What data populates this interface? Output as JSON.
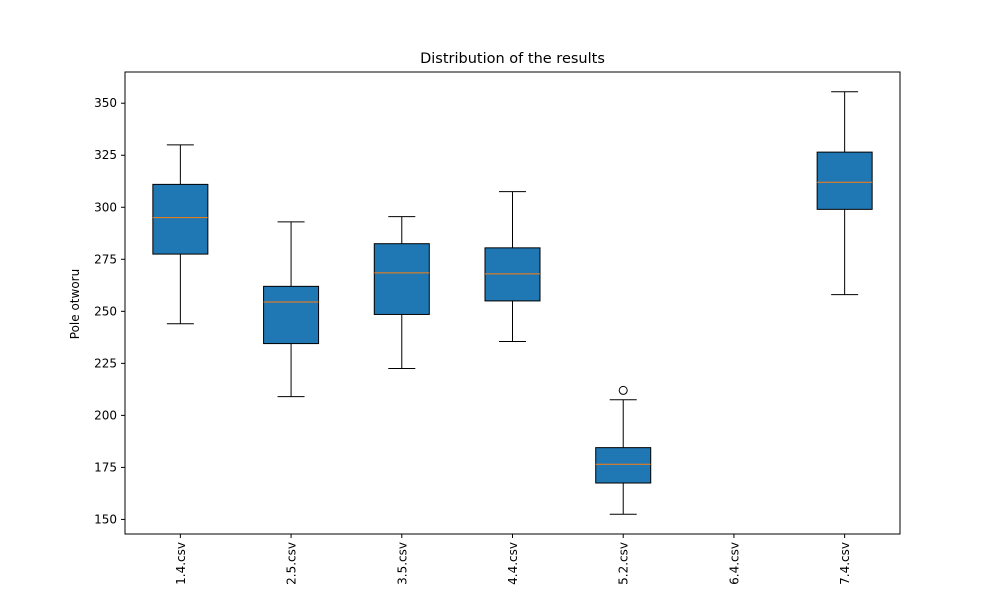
{
  "chart_data": {
    "type": "boxplot",
    "title": "Distribution of the results",
    "xlabel": "",
    "ylabel": "Pole otworu",
    "ylim": [
      143,
      365
    ],
    "yticks": [
      150,
      175,
      200,
      225,
      250,
      275,
      300,
      325,
      350
    ],
    "grid": false,
    "colors": {
      "box_fill": "#1f77b4",
      "median": "#ff7f0e",
      "edge": "#000000"
    },
    "categories": [
      "1.4.csv",
      "2.5.csv",
      "3.5.csv",
      "4.4.csv",
      "5.2.csv",
      "6.4.csv",
      "7.4.csv"
    ],
    "boxes": [
      {
        "label": "1.4.csv",
        "whisker_low": 244,
        "q1": 277.5,
        "median": 295,
        "q3": 311,
        "whisker_high": 330,
        "outliers": []
      },
      {
        "label": "2.5.csv",
        "whisker_low": 209,
        "q1": 234.5,
        "median": 254.5,
        "q3": 262,
        "whisker_high": 293,
        "outliers": []
      },
      {
        "label": "3.5.csv",
        "whisker_low": 222.5,
        "q1": 248.5,
        "median": 268.5,
        "q3": 282.5,
        "whisker_high": 295.5,
        "outliers": []
      },
      {
        "label": "4.4.csv",
        "whisker_low": 235.5,
        "q1": 255,
        "median": 268,
        "q3": 280.5,
        "whisker_high": 307.5,
        "outliers": []
      },
      {
        "label": "5.2.csv",
        "whisker_low": 152.5,
        "q1": 167.5,
        "median": 176.5,
        "q3": 184.5,
        "whisker_high": 207.5,
        "outliers": [
          212
        ]
      },
      {
        "label": "6.4.csv",
        "whisker_low": null,
        "q1": null,
        "median": null,
        "q3": null,
        "whisker_high": null,
        "outliers": []
      },
      {
        "label": "7.4.csv",
        "whisker_low": 258,
        "q1": 299,
        "median": 312,
        "q3": 326.5,
        "whisker_high": 355.5,
        "outliers": []
      }
    ]
  }
}
